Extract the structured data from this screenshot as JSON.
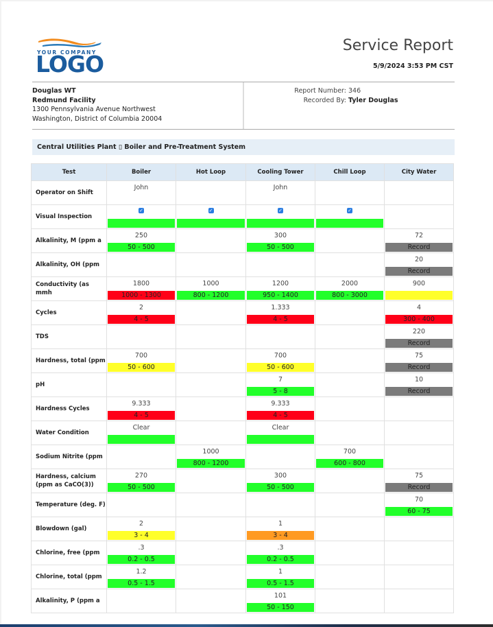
{
  "header": {
    "logo": {
      "tagline": "YOUR COMPANY",
      "word": "LOGO"
    },
    "title": "Service Report",
    "datetime": "5/9/2024 3:53 PM CST"
  },
  "customer": {
    "name": "Douglas WT",
    "facility": "Redmund Facility",
    "address_line1": "1300 Pennsylvania Avenue Northwest",
    "address_line2": "Washington, District of Columbia 20004"
  },
  "report": {
    "number_label": "Report Number:",
    "number": "346",
    "recorded_by_label": "Recorded By:",
    "recorded_by": "Tyler Douglas"
  },
  "section": {
    "title": "Central Utilities Plant ▯ Boiler and Pre-Treatment System"
  },
  "colors": {
    "in_range": "#22ff2a",
    "out_of_range": "#ff0018",
    "warning": "#ffff2a",
    "caution": "#ff9a22",
    "record": "#7b7b7b",
    "header_bg": "#dce9f5"
  },
  "table": {
    "columns": [
      "Test",
      "Boiler",
      "Hot Loop",
      "Cooling Tower",
      "Chill Loop",
      "City Water"
    ],
    "rows": [
      {
        "test": "Operator on Shift",
        "cells": [
          {
            "value": "John"
          },
          {},
          {
            "value": "John"
          },
          {},
          {}
        ]
      },
      {
        "test": "Visual Inspection",
        "cells": [
          {
            "checked": true,
            "range": "",
            "status": "green"
          },
          {
            "checked": true,
            "range": "",
            "status": "green"
          },
          {
            "checked": true,
            "range": "",
            "status": "green"
          },
          {
            "checked": true,
            "range": "",
            "status": "green"
          },
          {}
        ]
      },
      {
        "test": "Alkalinity, M (ppm a",
        "cells": [
          {
            "value": "250",
            "range": "50 - 500",
            "status": "green"
          },
          {},
          {
            "value": "300",
            "range": "50 - 500",
            "status": "green"
          },
          {},
          {
            "value": "72",
            "range": "Record",
            "status": "gray"
          }
        ]
      },
      {
        "test": "Alkalinity, OH (ppm",
        "cells": [
          {},
          {},
          {},
          {},
          {
            "value": "20",
            "range": "Record",
            "status": "gray"
          }
        ]
      },
      {
        "test": "Conductivity (as mmh",
        "cells": [
          {
            "value": "1800",
            "range": "1000 - 1300",
            "status": "red"
          },
          {
            "value": "1000",
            "range": "800 - 1200",
            "status": "green"
          },
          {
            "value": "1200",
            "range": "950 - 1400",
            "status": "green"
          },
          {
            "value": "2000",
            "range": "800 - 3000",
            "status": "green"
          },
          {
            "value": "900",
            "range": "",
            "status": "yellow"
          }
        ]
      },
      {
        "test": "Cycles",
        "cells": [
          {
            "value": "2",
            "range": "4 - 5",
            "status": "red"
          },
          {},
          {
            "value": "1.333",
            "range": "4 - 5",
            "status": "red"
          },
          {},
          {
            "value": "4",
            "range": "300 - 400",
            "status": "red"
          }
        ]
      },
      {
        "test": "TDS",
        "cells": [
          {},
          {},
          {},
          {},
          {
            "value": "220",
            "range": "Record",
            "status": "gray"
          }
        ]
      },
      {
        "test": "Hardness, total (ppm",
        "cells": [
          {
            "value": "700",
            "range": "50 - 600",
            "status": "yellow"
          },
          {},
          {
            "value": "700",
            "range": "50 - 600",
            "status": "yellow"
          },
          {},
          {
            "value": "75",
            "range": "Record",
            "status": "gray"
          }
        ]
      },
      {
        "test": "pH",
        "cells": [
          {},
          {},
          {
            "value": "7",
            "range": "5 - 8",
            "status": "green"
          },
          {},
          {
            "value": "10",
            "range": "Record",
            "status": "gray"
          }
        ]
      },
      {
        "test": "Hardness Cycles",
        "cells": [
          {
            "value": "9.333",
            "range": "4 - 5",
            "status": "red"
          },
          {},
          {
            "value": "9.333",
            "range": "4 - 5",
            "status": "red"
          },
          {},
          {}
        ]
      },
      {
        "test": "Water Condition",
        "cells": [
          {
            "value": "Clear",
            "range": "",
            "status": "green"
          },
          {},
          {
            "value": "Clear",
            "range": "",
            "status": "green"
          },
          {},
          {}
        ]
      },
      {
        "test": "Sodium Nitrite (ppm",
        "cells": [
          {},
          {
            "value": "1000",
            "range": "800 - 1200",
            "status": "green"
          },
          {},
          {
            "value": "700",
            "range": "600 - 800",
            "status": "green"
          },
          {}
        ]
      },
      {
        "test": "Hardness, calcium (ppm as CaCO(3))",
        "cells": [
          {
            "value": "270",
            "range": "50 - 500",
            "status": "green"
          },
          {},
          {
            "value": "300",
            "range": "50 - 500",
            "status": "green"
          },
          {},
          {
            "value": "75",
            "range": "Record",
            "status": "gray"
          }
        ]
      },
      {
        "test": "Temperature (deg. F)",
        "cells": [
          {},
          {},
          {},
          {},
          {
            "value": "70",
            "range": "60 - 75",
            "status": "green"
          }
        ]
      },
      {
        "test": "Blowdown (gal)",
        "cells": [
          {
            "value": "2",
            "range": "3 - 4",
            "status": "yellow"
          },
          {},
          {
            "value": "1",
            "range": "3 - 4",
            "status": "orange"
          },
          {},
          {}
        ]
      },
      {
        "test": "Chlorine, free (ppm",
        "cells": [
          {
            "value": ".3",
            "range": "0.2 - 0.5",
            "status": "green"
          },
          {},
          {
            "value": ".3",
            "range": "0.2 - 0.5",
            "status": "green"
          },
          {},
          {}
        ]
      },
      {
        "test": "Chlorine, total (ppm",
        "cells": [
          {
            "value": "1.2",
            "range": "0.5 - 1.5",
            "status": "green"
          },
          {},
          {
            "value": "1",
            "range": "0.5 - 1.5",
            "status": "green"
          },
          {},
          {}
        ]
      },
      {
        "test": "Alkalinity, P (ppm a",
        "cells": [
          {},
          {},
          {
            "value": "101",
            "range": "50 - 150",
            "status": "green"
          },
          {},
          {}
        ]
      }
    ]
  }
}
